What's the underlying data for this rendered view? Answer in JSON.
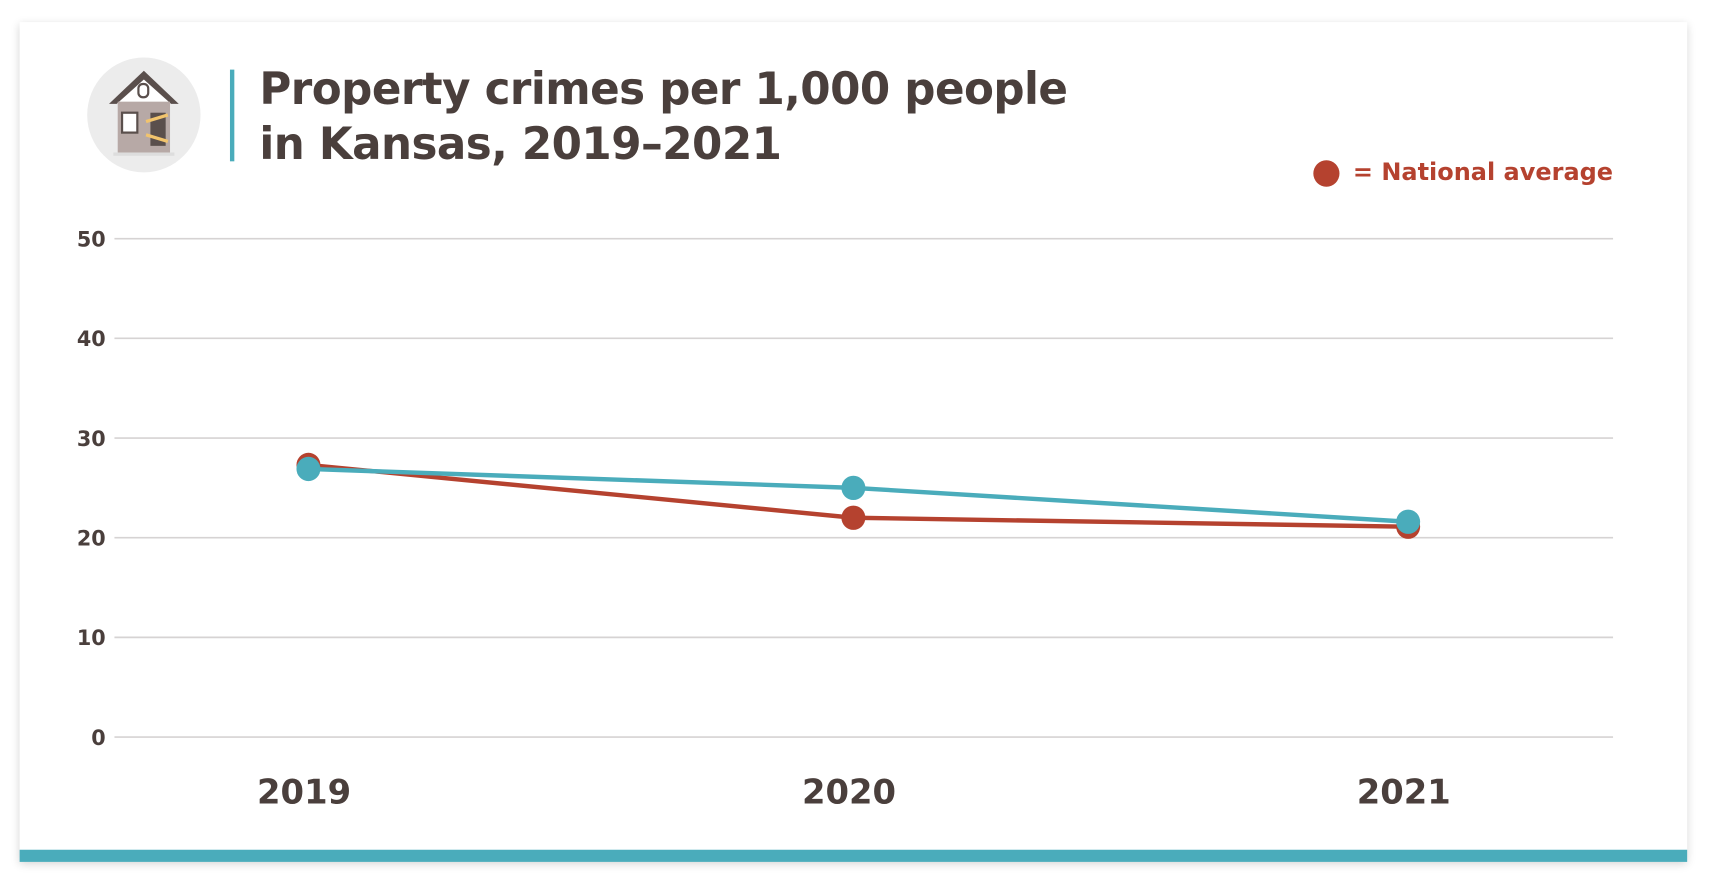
{
  "header": {
    "title_line1": "Property crimes per 1,000 people",
    "title_line2": "in Kansas, 2019–2021",
    "icon": "burglarized-house-icon"
  },
  "legend": {
    "label": "= National average",
    "color": "#b5422f"
  },
  "chart_data": {
    "type": "line",
    "title": "Property crimes per 1,000 people in Kansas, 2019–2021",
    "categories": [
      "2019",
      "2020",
      "2021"
    ],
    "series": [
      {
        "name": "National average",
        "color": "#b5422f",
        "values": [
          27.3,
          22.0,
          21.1
        ]
      },
      {
        "color": "#4aacbb",
        "values": [
          26.9,
          25.0,
          21.6
        ]
      }
    ],
    "ylim": [
      0,
      50
    ],
    "yticks": [
      "0",
      "10",
      "20",
      "30",
      "40",
      "50"
    ],
    "grid": true,
    "legend_position": "top-right"
  },
  "colors": {
    "accent": "#4aacbb",
    "text": "#4a3f3c"
  }
}
